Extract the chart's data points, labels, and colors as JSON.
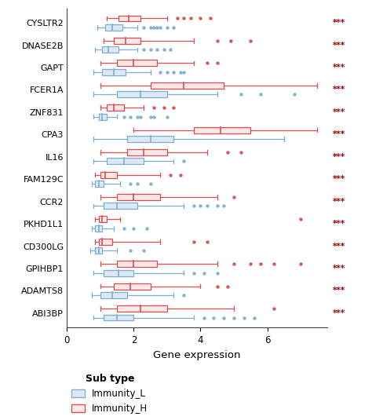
{
  "genes": [
    "CYSLTR2",
    "DNASE2B",
    "GAPT",
    "FCER1A",
    "ZNF831",
    "CPA3",
    "IL16",
    "FAM129C",
    "CCR2",
    "PKHD1L1",
    "CD300LG",
    "GPIHBP1",
    "ADAMTS8",
    "ABI3BP"
  ],
  "significance": [
    "***",
    "***",
    "***",
    "***",
    "***",
    "***",
    "***",
    "***",
    "***",
    "***",
    "***",
    "***",
    "***",
    "***"
  ],
  "blue_boxes": [
    {
      "whislo": 0.9,
      "q1": 1.15,
      "med": 1.35,
      "q3": 1.65,
      "whishi": 2.1,
      "fliers": [
        2.3,
        2.5,
        2.6,
        2.7,
        2.8,
        3.0,
        3.2
      ]
    },
    {
      "whislo": 0.85,
      "q1": 1.05,
      "med": 1.25,
      "q3": 1.55,
      "whishi": 2.1,
      "fliers": [
        2.3,
        2.5,
        2.7,
        2.9,
        3.1
      ]
    },
    {
      "whislo": 0.8,
      "q1": 1.05,
      "med": 1.4,
      "q3": 1.75,
      "whishi": 2.5,
      "fliers": [
        2.8,
        3.0,
        3.2,
        3.4,
        3.5
      ]
    },
    {
      "whislo": 0.8,
      "q1": 1.5,
      "med": 2.2,
      "q3": 3.0,
      "whishi": 4.5,
      "fliers": [
        5.2,
        5.8,
        6.8
      ]
    },
    {
      "whislo": 0.8,
      "q1": 0.95,
      "med": 1.05,
      "q3": 1.2,
      "whishi": 1.5,
      "fliers": [
        1.7,
        1.9,
        2.1,
        2.2,
        2.5,
        2.6,
        3.0
      ]
    },
    {
      "whislo": 0.8,
      "q1": 1.8,
      "med": 2.5,
      "q3": 3.2,
      "whishi": 6.5,
      "fliers": []
    },
    {
      "whislo": 0.8,
      "q1": 1.2,
      "med": 1.7,
      "q3": 2.3,
      "whishi": 3.2,
      "fliers": [
        3.5
      ]
    },
    {
      "whislo": 0.75,
      "q1": 0.85,
      "med": 0.95,
      "q3": 1.1,
      "whishi": 1.6,
      "fliers": [
        1.9,
        2.1,
        2.5
      ]
    },
    {
      "whislo": 0.8,
      "q1": 1.1,
      "med": 1.5,
      "q3": 2.1,
      "whishi": 3.5,
      "fliers": [
        3.8,
        4.0,
        4.2,
        4.5,
        4.7
      ]
    },
    {
      "whislo": 0.75,
      "q1": 0.85,
      "med": 0.95,
      "q3": 1.05,
      "whishi": 1.4,
      "fliers": [
        1.7,
        2.0,
        2.4
      ]
    },
    {
      "whislo": 0.7,
      "q1": 0.85,
      "med": 0.95,
      "q3": 1.05,
      "whishi": 1.5,
      "fliers": [
        1.9,
        2.3
      ]
    },
    {
      "whislo": 0.8,
      "q1": 1.1,
      "med": 1.55,
      "q3": 2.0,
      "whishi": 3.5,
      "fliers": [
        3.8,
        4.1,
        4.5
      ]
    },
    {
      "whislo": 0.75,
      "q1": 1.0,
      "med": 1.35,
      "q3": 1.8,
      "whishi": 3.2,
      "fliers": [
        3.5
      ]
    },
    {
      "whislo": 0.8,
      "q1": 1.1,
      "med": 1.5,
      "q3": 2.0,
      "whishi": 3.8,
      "fliers": [
        4.1,
        4.4,
        4.7,
        5.0,
        5.3,
        5.6
      ]
    }
  ],
  "red_boxes": [
    {
      "whislo": 1.2,
      "q1": 1.55,
      "med": 1.85,
      "q3": 2.2,
      "whishi": 3.0,
      "fliers": [
        3.3,
        3.5,
        3.7,
        4.0,
        4.3
      ]
    },
    {
      "whislo": 1.1,
      "q1": 1.4,
      "med": 1.75,
      "q3": 2.2,
      "whishi": 3.8,
      "fliers": [
        4.5,
        4.9,
        5.5
      ]
    },
    {
      "whislo": 1.0,
      "q1": 1.5,
      "med": 2.0,
      "q3": 2.7,
      "whishi": 3.8,
      "fliers": [
        4.2,
        4.5
      ]
    },
    {
      "whislo": 1.0,
      "q1": 2.5,
      "med": 3.5,
      "q3": 4.7,
      "whishi": 7.5,
      "fliers": []
    },
    {
      "whislo": 1.0,
      "q1": 1.2,
      "med": 1.4,
      "q3": 1.7,
      "whishi": 2.3,
      "fliers": [
        2.6,
        2.9,
        3.2
      ]
    },
    {
      "whislo": 2.0,
      "q1": 3.8,
      "med": 4.6,
      "q3": 5.5,
      "whishi": 7.5,
      "fliers": []
    },
    {
      "whislo": 1.0,
      "q1": 1.8,
      "med": 2.3,
      "q3": 3.0,
      "whishi": 4.2,
      "fliers": [
        4.8,
        5.2
      ]
    },
    {
      "whislo": 0.85,
      "q1": 1.0,
      "med": 1.15,
      "q3": 1.5,
      "whishi": 2.8,
      "fliers": [
        3.1,
        3.4
      ]
    },
    {
      "whislo": 1.0,
      "q1": 1.5,
      "med": 2.0,
      "q3": 2.8,
      "whishi": 4.5,
      "fliers": [
        5.0
      ]
    },
    {
      "whislo": 0.85,
      "q1": 0.95,
      "med": 1.05,
      "q3": 1.2,
      "whishi": 1.6,
      "fliers": [
        7.0
      ]
    },
    {
      "whislo": 0.85,
      "q1": 0.95,
      "med": 1.05,
      "q3": 1.35,
      "whishi": 2.8,
      "fliers": [
        3.8,
        4.2
      ]
    },
    {
      "whislo": 1.0,
      "q1": 1.5,
      "med": 2.0,
      "q3": 2.7,
      "whishi": 4.5,
      "fliers": [
        5.0,
        5.5,
        5.8,
        6.2,
        7.0
      ]
    },
    {
      "whislo": 1.0,
      "q1": 1.4,
      "med": 1.9,
      "q3": 2.5,
      "whishi": 4.0,
      "fliers": [
        4.5,
        4.8
      ]
    },
    {
      "whislo": 1.0,
      "q1": 1.5,
      "med": 2.2,
      "q3": 3.0,
      "whishi": 5.0,
      "fliers": [
        6.2
      ]
    }
  ],
  "blue_color": "#7bafd4",
  "red_color": "#d94f4f",
  "blue_fill": "#dce9f5",
  "red_fill": "#fde8e8",
  "xlabel": "Gene expression",
  "xlim": [
    0,
    7.8
  ],
  "xticks": [
    0,
    2,
    4,
    6
  ],
  "sig_color": "#990000",
  "bg_color": "#ffffff",
  "legend_title": "Sub type",
  "legend_labels": [
    "Immunity_L",
    "Immunity_H"
  ]
}
